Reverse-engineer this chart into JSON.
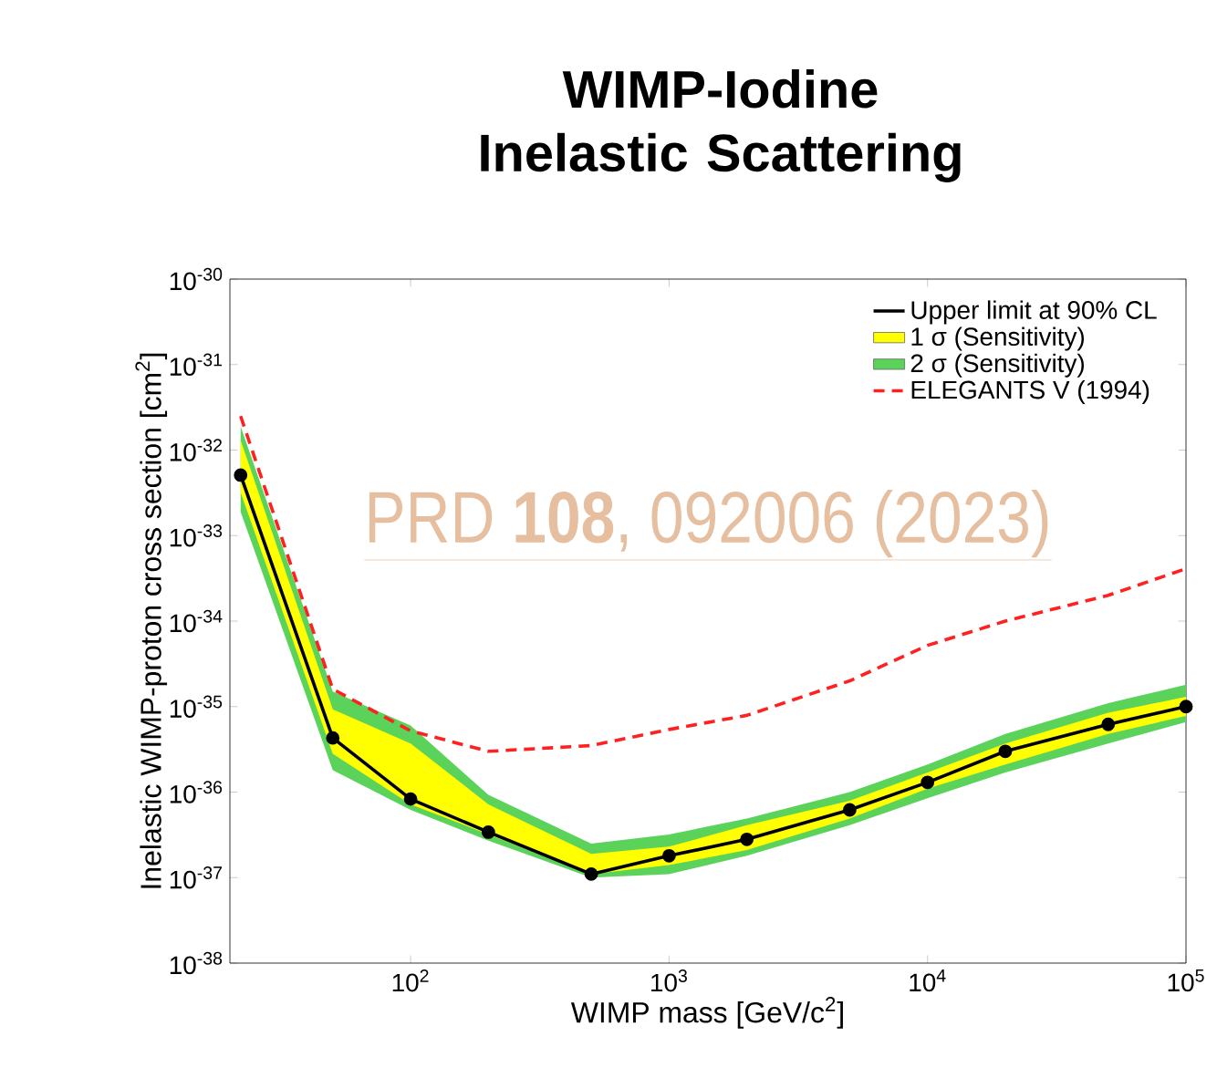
{
  "chart_data": {
    "type": "line",
    "title": "WIMP-Iodine Inelastic Scattering",
    "xlabel": "WIMP mass [GeV/c$^{2}$]",
    "ylabel": "Inelastic WIMP-proton cross section [cm$^{2}$]",
    "log": "xy",
    "xlim": [
      20,
      100000
    ],
    "ylim": [
      1e-38,
      1e-30
    ],
    "xticks": [
      {
        "value": 100,
        "label": "10$^{2}$"
      },
      {
        "value": 1000,
        "label": "10$^{3}$"
      },
      {
        "value": 10000,
        "label": "10$^{4}$"
      },
      {
        "value": 100000,
        "label": "10$^{5}$"
      }
    ],
    "yticks": [
      {
        "value": 1e-38,
        "label": "10$^{-38}$"
      },
      {
        "value": 1e-37,
        "label": "10$^{-37}$"
      },
      {
        "value": 1e-36,
        "label": "10$^{-36}$"
      },
      {
        "value": 1e-35,
        "label": "10$^{-35}$"
      },
      {
        "value": 1e-34,
        "label": "10$^{-34}$"
      },
      {
        "value": 1e-33,
        "label": "10$^{-33}$"
      },
      {
        "value": 1e-32,
        "label": "10$^{-32}$"
      },
      {
        "value": 1e-31,
        "label": "10$^{-31}$"
      },
      {
        "value": 1e-30,
        "label": "10$^{-30}$"
      }
    ],
    "x": [
      22,
      50,
      100,
      200,
      500,
      1000,
      2000,
      5000,
      10000,
      20000,
      50000,
      100000
    ],
    "legend": "top right",
    "series": [
      {
        "name": "Upper limit at 90% CL",
        "type": "line",
        "color": "#000000",
        "marker": "circle",
        "line_style": "solid",
        "values": [
          5.1e-33,
          4.3e-36,
          8.3e-37,
          3.4e-37,
          1.1e-37,
          1.8e-37,
          2.8e-37,
          6.2e-37,
          1.3e-36,
          3e-36,
          6.2e-36,
          1e-35
        ]
      },
      {
        "name": "1 σ (Sensitivity)",
        "type": "area",
        "color": "#ffff00",
        "values": [
          null,
          null,
          null,
          null,
          null,
          null,
          null,
          null,
          null,
          null,
          null,
          null
        ],
        "lower": [
          3.2e-33,
          2.8e-36,
          7.2e-37,
          3.2e-37,
          1.1e-37,
          1.4e-37,
          2.1e-37,
          4.9e-37,
          1.1e-36,
          2.1e-36,
          4.8e-36,
          7.8e-36
        ],
        "upper": [
          1.3e-32,
          9.3e-36,
          3.7e-36,
          7.2e-37,
          1.9e-37,
          2.3e-37,
          4.1e-37,
          7.9e-37,
          1.7e-36,
          3.7e-36,
          8.5e-36,
          1.3e-35
        ]
      },
      {
        "name": "2 σ (Sensitivity)",
        "type": "area",
        "color": "#5bd35b",
        "values": [
          null,
          null,
          null,
          null,
          null,
          null,
          null,
          null,
          null,
          null,
          null,
          null
        ],
        "lower": [
          1.9e-33,
          1.8e-36,
          6.2e-37,
          2.7e-37,
          1e-37,
          1.1e-37,
          1.8e-37,
          4.1e-37,
          8.5e-37,
          1.7e-36,
          3.7e-36,
          6.6e-36
        ],
        "upper": [
          1.9e-32,
          1.5e-35,
          6e-36,
          9.3e-37,
          2.5e-37,
          3.2e-37,
          4.9e-37,
          1e-36,
          2.1e-36,
          4.8e-36,
          1.1e-35,
          1.8e-35
        ]
      },
      {
        "name": "ELEGANTS V (1994)",
        "type": "line",
        "color": "#ff2020",
        "marker": "none",
        "line_style": "dashed",
        "values": [
          2.5e-32,
          1.6e-35,
          5.2e-36,
          3e-36,
          3.5e-36,
          5.4e-36,
          7.9e-36,
          2e-35,
          5.2e-35,
          1e-34,
          2e-34,
          4.1e-34
        ]
      }
    ],
    "annotations": [
      "PRD **108**, 092006 (2023)"
    ]
  }
}
